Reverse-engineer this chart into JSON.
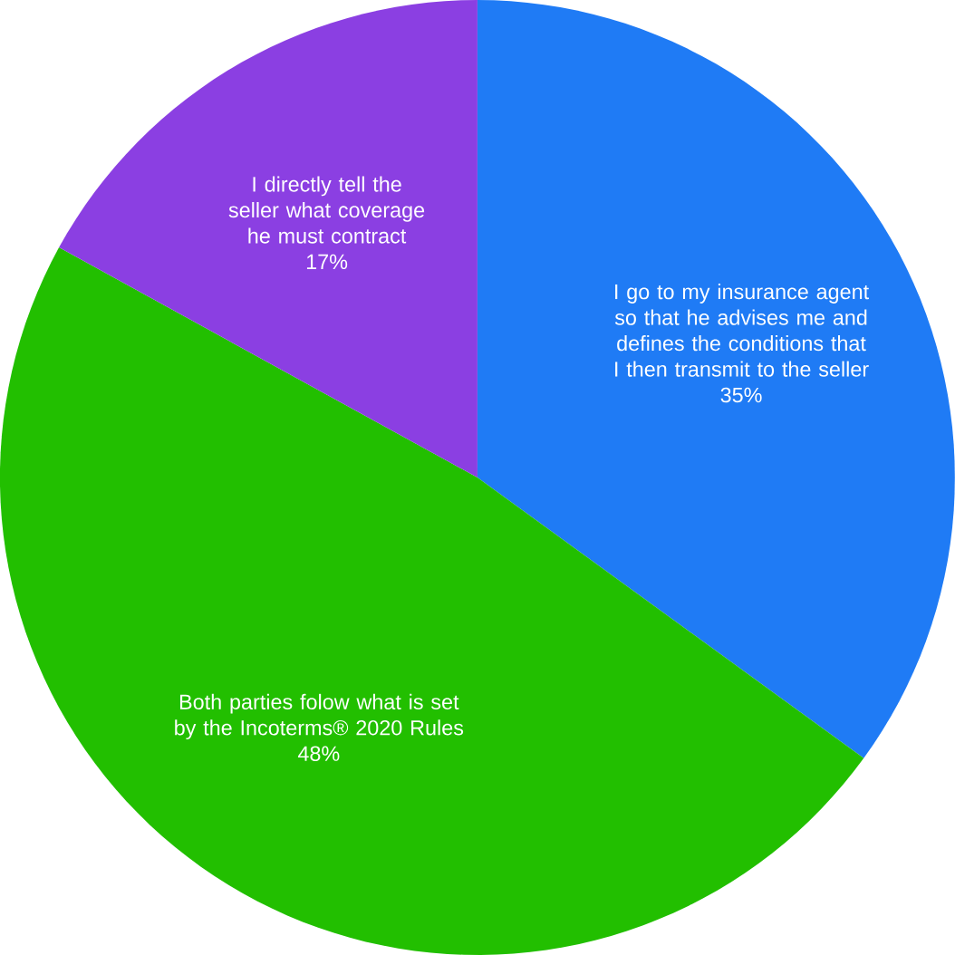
{
  "chart_data": {
    "type": "pie",
    "categories": [
      "I go to my insurance agent so that he advises me and defines the conditions that I then transmit to the seller",
      "Both parties folow what is set by the Incoterms® 2020 Rules",
      "I directly tell the seller what coverage he must contract"
    ],
    "values": [
      35,
      48,
      17
    ],
    "value_labels": [
      "35%",
      "48%",
      "17%"
    ],
    "colors": [
      "#1f7bf5",
      "#22bf00",
      "#8b3fe2"
    ]
  }
}
